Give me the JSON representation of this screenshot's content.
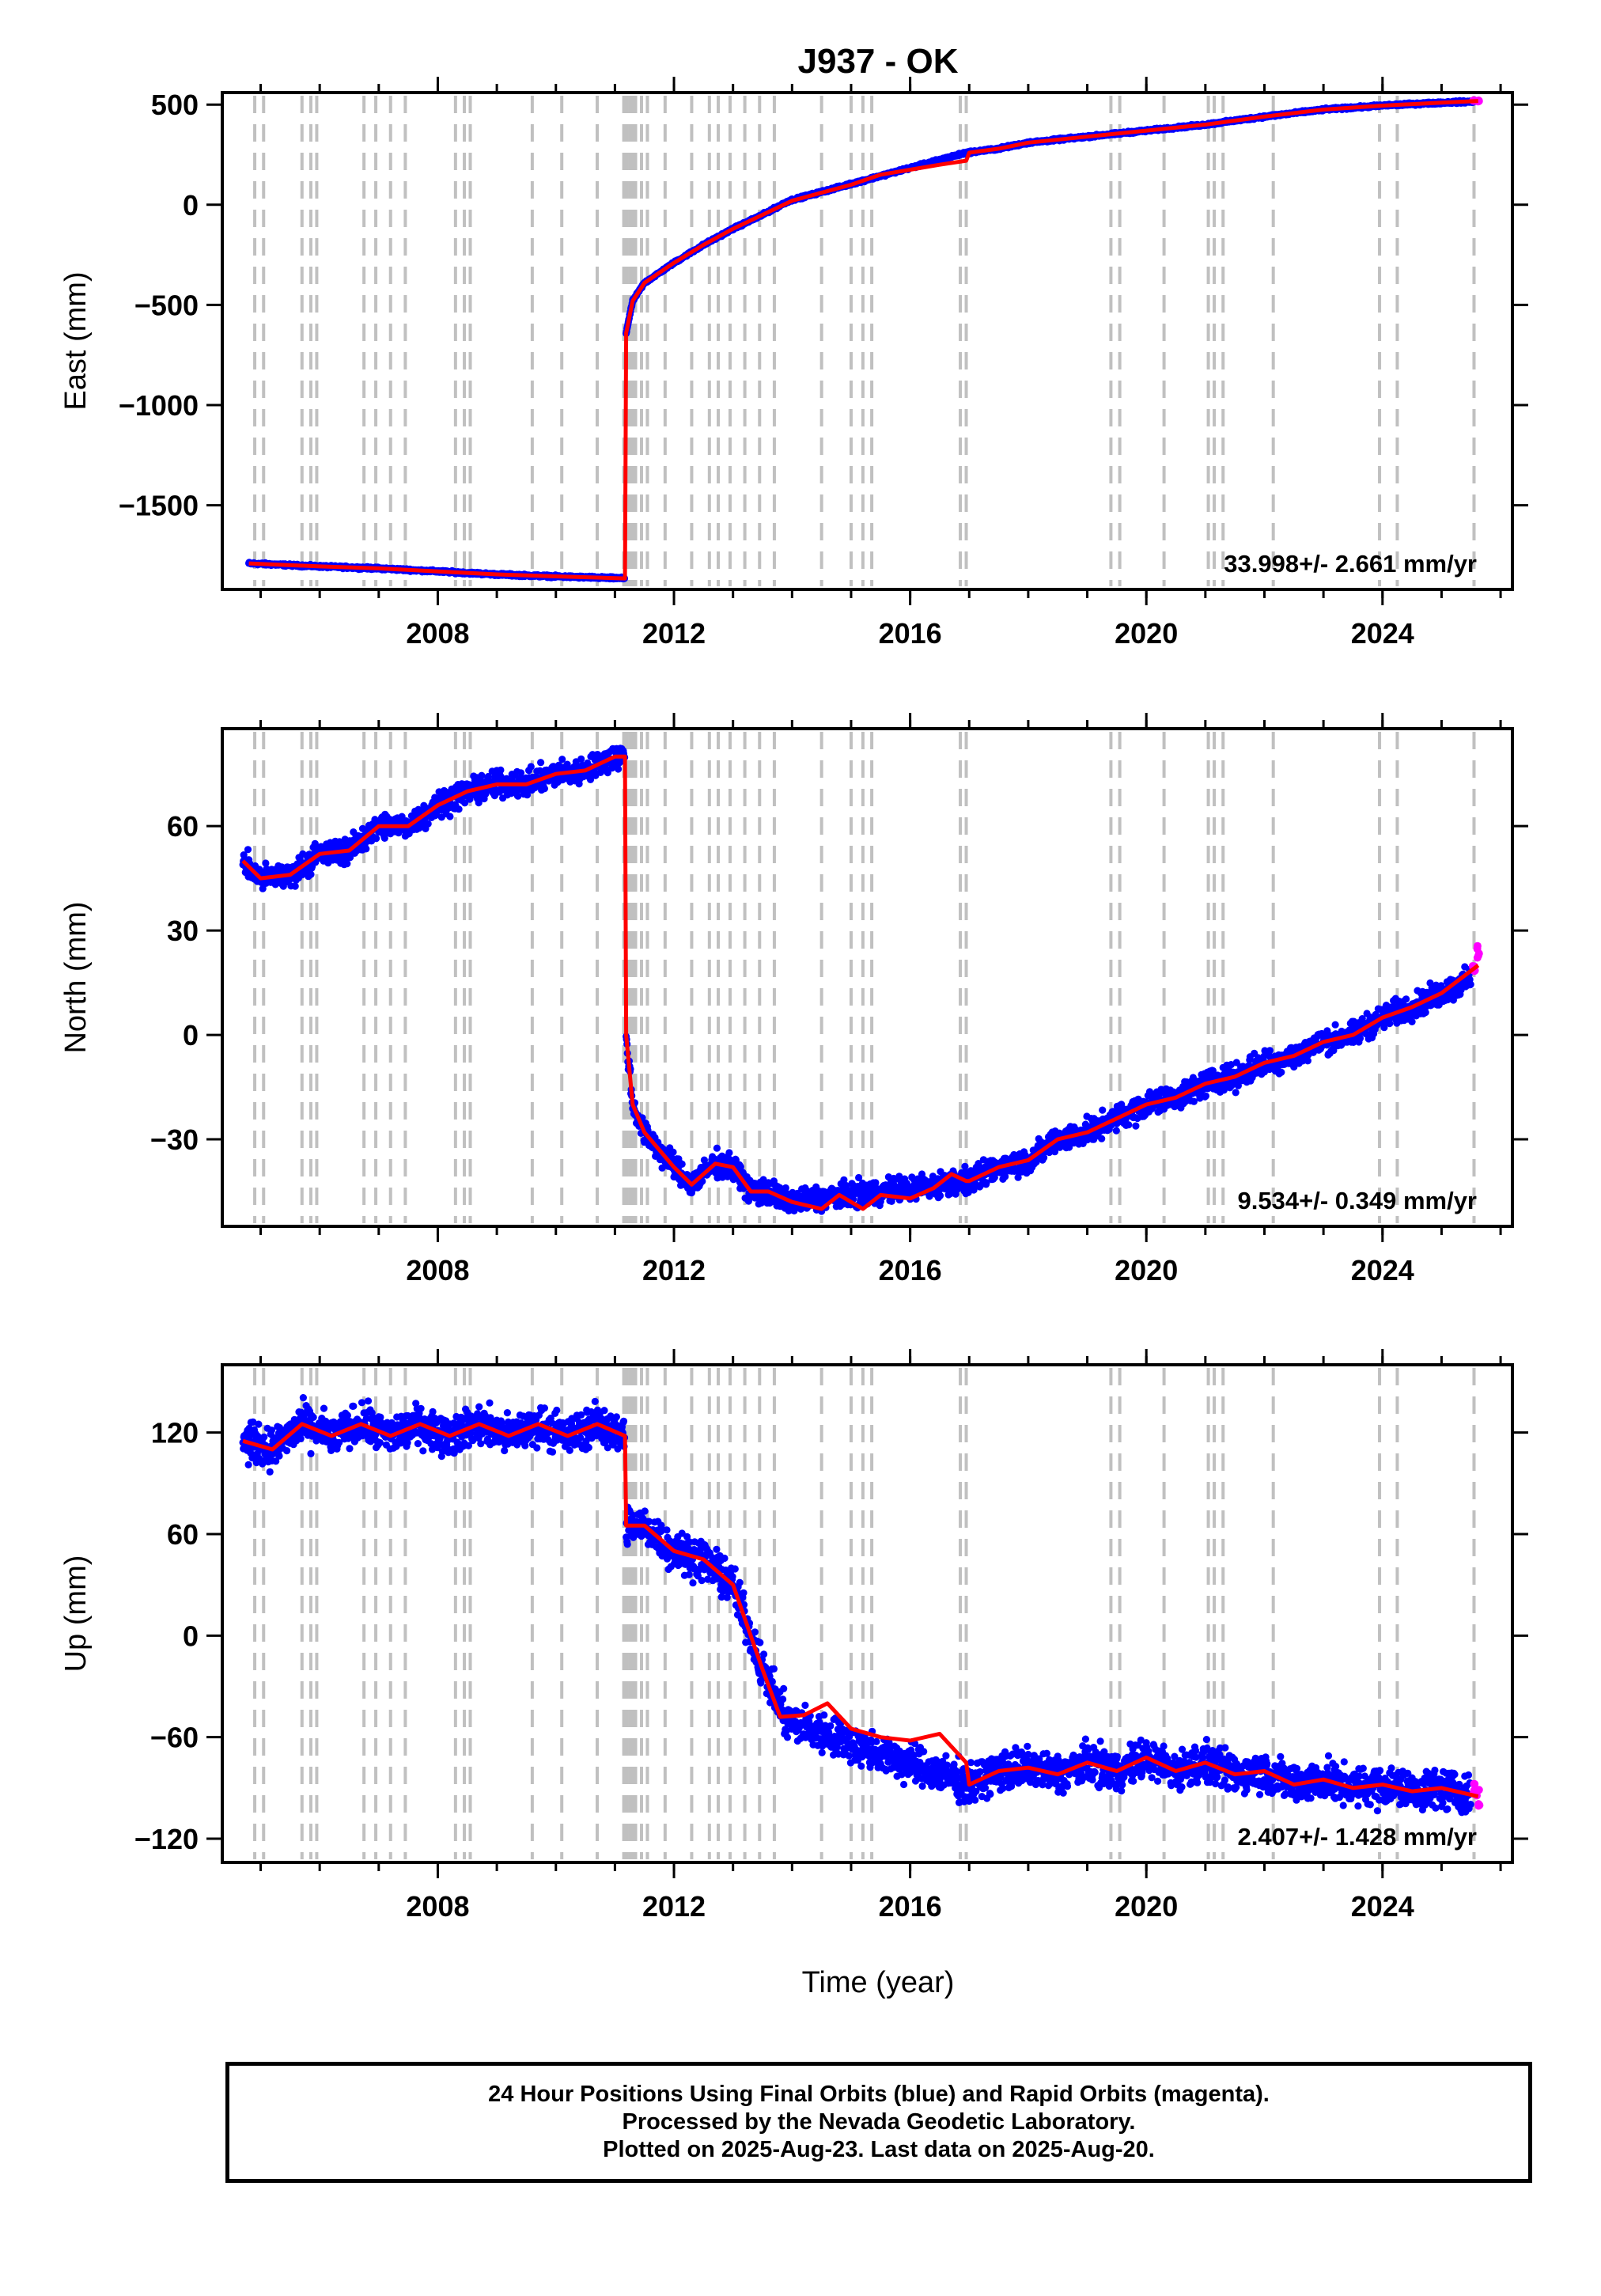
{
  "title": "J937 - OK",
  "xlabel": "Time (year)",
  "footer": {
    "line1": "24 Hour Positions Using Final Orbits (blue) and Rapid Orbits (magenta).",
    "line2": "Processed by the Nevada Geodetic Laboratory.",
    "line3": "Plotted on 2025-Aug-23. Last data on 2025-Aug-20."
  },
  "colors": {
    "final": "#0000ff",
    "rapid": "#ff00ff",
    "model": "#ff0000",
    "steps": "#c0c0c0"
  },
  "chart_data": [
    {
      "type": "scatter",
      "ylabel": "East (mm)",
      "xlim": [
        2004.35,
        2026.2
      ],
      "ylim": [
        -1920,
        560
      ],
      "xticks": [
        2008,
        2012,
        2016,
        2020,
        2024
      ],
      "yticks": [
        500,
        0,
        -500,
        -1000,
        -1500
      ],
      "rate": "33.998+/- 2.661 mm/yr",
      "final": [
        [
          2004.8,
          -1790
        ],
        [
          2006.0,
          -1805
        ],
        [
          2007.0,
          -1815
        ],
        [
          2008.0,
          -1830
        ],
        [
          2009.0,
          -1845
        ],
        [
          2010.0,
          -1855
        ],
        [
          2011.17,
          -1865
        ],
        [
          2011.19,
          -640
        ],
        [
          2011.3,
          -480
        ],
        [
          2011.5,
          -390
        ],
        [
          2012.0,
          -290
        ],
        [
          2012.5,
          -200
        ],
        [
          2013.0,
          -120
        ],
        [
          2013.5,
          -50
        ],
        [
          2013.95,
          20
        ],
        [
          2016.95,
          260
        ],
        [
          2017.5,
          280
        ],
        [
          2018.0,
          310
        ],
        [
          2019.0,
          340
        ],
        [
          2020.0,
          370
        ],
        [
          2021.0,
          400
        ],
        [
          2022.0,
          440
        ],
        [
          2023.0,
          475
        ],
        [
          2024.0,
          495
        ],
        [
          2025.0,
          510
        ],
        [
          2025.55,
          515
        ]
      ],
      "rapid": [
        [
          2025.55,
          520
        ],
        [
          2025.62,
          518
        ]
      ],
      "model": [
        [
          2004.8,
          -1790
        ],
        [
          2006.0,
          -1805
        ],
        [
          2007.0,
          -1815
        ],
        [
          2008.0,
          -1830
        ],
        [
          2009.0,
          -1845
        ],
        [
          2010.0,
          -1855
        ],
        [
          2011.17,
          -1865
        ],
        [
          2011.19,
          -640
        ],
        [
          2011.3,
          -480
        ],
        [
          2011.5,
          -390
        ],
        [
          2012.0,
          -290
        ],
        [
          2012.5,
          -200
        ],
        [
          2013.0,
          -120
        ],
        [
          2013.5,
          -50
        ],
        [
          2014.0,
          20
        ],
        [
          2014.5,
          60
        ],
        [
          2015.0,
          100
        ],
        [
          2015.5,
          150
        ],
        [
          2016.0,
          175
        ],
        [
          2016.5,
          200
        ],
        [
          2016.95,
          220
        ],
        [
          2017.0,
          260
        ],
        [
          2017.5,
          280
        ],
        [
          2018.0,
          310
        ],
        [
          2019.0,
          340
        ],
        [
          2020.0,
          370
        ],
        [
          2021.0,
          400
        ],
        [
          2022.0,
          440
        ],
        [
          2023.0,
          475
        ],
        [
          2024.0,
          495
        ],
        [
          2025.0,
          510
        ],
        [
          2025.62,
          518
        ]
      ],
      "noise": 4
    },
    {
      "type": "scatter",
      "ylabel": "North (mm)",
      "xlim": [
        2004.35,
        2026.2
      ],
      "ylim": [
        -55,
        88
      ],
      "xticks": [
        2008,
        2012,
        2016,
        2020,
        2024
      ],
      "yticks": [
        60,
        30,
        0,
        -30
      ],
      "rate": "9.534+/- 0.349 mm/yr",
      "final": [
        [
          2004.7,
          50
        ],
        [
          2005.0,
          45
        ],
        [
          2005.5,
          46
        ],
        [
          2006.0,
          52
        ],
        [
          2006.5,
          53
        ],
        [
          2007.0,
          60
        ],
        [
          2007.5,
          60
        ],
        [
          2008.0,
          66
        ],
        [
          2008.5,
          70
        ],
        [
          2009.0,
          72
        ],
        [
          2009.5,
          72
        ],
        [
          2010.0,
          75
        ],
        [
          2010.5,
          76
        ],
        [
          2011.0,
          80
        ],
        [
          2011.17,
          80
        ],
        [
          2011.19,
          0
        ],
        [
          2011.3,
          -20
        ],
        [
          2011.5,
          -28
        ],
        [
          2012.0,
          -38
        ],
        [
          2012.3,
          -43
        ],
        [
          2012.7,
          -37
        ],
        [
          2013.0,
          -38
        ],
        [
          2013.3,
          -45
        ],
        [
          2013.6,
          -45
        ],
        [
          2013.9,
          -48
        ],
        [
          2017.0,
          -42
        ],
        [
          2017.5,
          -38
        ],
        [
          2018.0,
          -36
        ],
        [
          2018.5,
          -30
        ],
        [
          2019.0,
          -28
        ],
        [
          2019.5,
          -24
        ],
        [
          2020.0,
          -20
        ],
        [
          2020.5,
          -18
        ],
        [
          2021.0,
          -14
        ],
        [
          2021.5,
          -12
        ],
        [
          2022.0,
          -8
        ],
        [
          2022.5,
          -6
        ],
        [
          2023.0,
          -2
        ],
        [
          2023.5,
          0
        ],
        [
          2024.0,
          5
        ],
        [
          2024.5,
          8
        ],
        [
          2025.0,
          12
        ],
        [
          2025.5,
          16
        ]
      ],
      "rapid": [
        [
          2025.55,
          20
        ],
        [
          2025.62,
          24
        ]
      ],
      "model": [
        [
          2004.7,
          50
        ],
        [
          2005.0,
          45
        ],
        [
          2005.5,
          46
        ],
        [
          2006.0,
          52
        ],
        [
          2006.5,
          53
        ],
        [
          2007.0,
          60
        ],
        [
          2007.5,
          60
        ],
        [
          2008.0,
          66
        ],
        [
          2008.5,
          70
        ],
        [
          2009.0,
          72
        ],
        [
          2009.5,
          72
        ],
        [
          2010.0,
          75
        ],
        [
          2010.5,
          76
        ],
        [
          2011.0,
          80
        ],
        [
          2011.17,
          80
        ],
        [
          2011.19,
          0
        ],
        [
          2011.3,
          -20
        ],
        [
          2011.5,
          -28
        ],
        [
          2012.0,
          -38
        ],
        [
          2012.3,
          -43
        ],
        [
          2012.7,
          -37
        ],
        [
          2013.0,
          -38
        ],
        [
          2013.3,
          -45
        ],
        [
          2013.6,
          -45
        ],
        [
          2014.0,
          -48
        ],
        [
          2014.5,
          -50
        ],
        [
          2014.8,
          -46
        ],
        [
          2015.2,
          -50
        ],
        [
          2015.5,
          -46
        ],
        [
          2016.0,
          -47
        ],
        [
          2016.4,
          -44
        ],
        [
          2016.7,
          -40
        ],
        [
          2016.95,
          -42
        ],
        [
          2017.0,
          -42
        ],
        [
          2017.5,
          -38
        ],
        [
          2018.0,
          -36
        ],
        [
          2018.5,
          -30
        ],
        [
          2019.0,
          -28
        ],
        [
          2019.5,
          -24
        ],
        [
          2020.0,
          -20
        ],
        [
          2020.5,
          -18
        ],
        [
          2021.0,
          -14
        ],
        [
          2021.5,
          -12
        ],
        [
          2022.0,
          -8
        ],
        [
          2022.5,
          -6
        ],
        [
          2023.0,
          -2
        ],
        [
          2023.5,
          0
        ],
        [
          2024.0,
          5
        ],
        [
          2024.5,
          8
        ],
        [
          2025.0,
          12
        ],
        [
          2025.62,
          20
        ]
      ],
      "noise": 2.5
    },
    {
      "type": "scatter",
      "ylabel": "Up (mm)",
      "xlim": [
        2004.35,
        2026.2
      ],
      "ylim": [
        -134,
        160
      ],
      "xticks": [
        2008,
        2012,
        2016,
        2020,
        2024
      ],
      "yticks": [
        120,
        60,
        0,
        -60,
        -120
      ],
      "rate": "2.407+/- 1.428 mm/yr",
      "final": [
        [
          2004.7,
          115
        ],
        [
          2005.2,
          110
        ],
        [
          2005.7,
          125
        ],
        [
          2006.2,
          118
        ],
        [
          2006.7,
          125
        ],
        [
          2007.2,
          118
        ],
        [
          2007.7,
          125
        ],
        [
          2008.2,
          118
        ],
        [
          2008.7,
          125
        ],
        [
          2009.2,
          118
        ],
        [
          2009.7,
          125
        ],
        [
          2010.2,
          118
        ],
        [
          2010.7,
          125
        ],
        [
          2011.17,
          118
        ],
        [
          2011.19,
          65
        ],
        [
          2011.5,
          65
        ],
        [
          2012.0,
          50
        ],
        [
          2012.5,
          45
        ],
        [
          2013.0,
          30
        ],
        [
          2013.2,
          10
        ],
        [
          2013.5,
          -20
        ],
        [
          2013.9,
          -50
        ],
        [
          2017.0,
          -88
        ],
        [
          2017.5,
          -80
        ],
        [
          2018.0,
          -78
        ],
        [
          2018.5,
          -82
        ],
        [
          2019.0,
          -75
        ],
        [
          2019.5,
          -80
        ],
        [
          2020.0,
          -72
        ],
        [
          2020.5,
          -80
        ],
        [
          2021.0,
          -75
        ],
        [
          2021.5,
          -82
        ],
        [
          2022.0,
          -80
        ],
        [
          2022.5,
          -88
        ],
        [
          2023.0,
          -85
        ],
        [
          2023.5,
          -90
        ],
        [
          2024.0,
          -88
        ],
        [
          2024.5,
          -92
        ],
        [
          2025.0,
          -90
        ],
        [
          2025.5,
          -95
        ]
      ],
      "rapid": [
        [
          2025.55,
          -90
        ],
        [
          2025.62,
          -95
        ]
      ],
      "model": [
        [
          2004.7,
          115
        ],
        [
          2005.2,
          110
        ],
        [
          2005.7,
          125
        ],
        [
          2006.2,
          118
        ],
        [
          2006.7,
          125
        ],
        [
          2007.2,
          118
        ],
        [
          2007.7,
          125
        ],
        [
          2008.2,
          118
        ],
        [
          2008.7,
          125
        ],
        [
          2009.2,
          118
        ],
        [
          2009.7,
          125
        ],
        [
          2010.2,
          118
        ],
        [
          2010.7,
          125
        ],
        [
          2011.17,
          118
        ],
        [
          2011.19,
          65
        ],
        [
          2011.5,
          65
        ],
        [
          2012.0,
          50
        ],
        [
          2012.5,
          45
        ],
        [
          2013.0,
          30
        ],
        [
          2013.2,
          10
        ],
        [
          2013.5,
          -20
        ],
        [
          2013.8,
          -48
        ],
        [
          2014.2,
          -47
        ],
        [
          2014.6,
          -40
        ],
        [
          2015.0,
          -55
        ],
        [
          2015.5,
          -60
        ],
        [
          2016.0,
          -62
        ],
        [
          2016.5,
          -58
        ],
        [
          2016.95,
          -75
        ],
        [
          2017.0,
          -88
        ],
        [
          2017.5,
          -80
        ],
        [
          2018.0,
          -78
        ],
        [
          2018.5,
          -82
        ],
        [
          2019.0,
          -75
        ],
        [
          2019.5,
          -80
        ],
        [
          2020.0,
          -72
        ],
        [
          2020.5,
          -80
        ],
        [
          2021.0,
          -75
        ],
        [
          2021.5,
          -82
        ],
        [
          2022.0,
          -80
        ],
        [
          2022.5,
          -88
        ],
        [
          2023.0,
          -85
        ],
        [
          2023.5,
          -90
        ],
        [
          2024.0,
          -88
        ],
        [
          2024.5,
          -92
        ],
        [
          2025.0,
          -90
        ],
        [
          2025.62,
          -95
        ]
      ],
      "noise": 8
    }
  ],
  "steps": [
    2004.9,
    2005.05,
    2005.7,
    2005.85,
    2005.95,
    2006.75,
    2006.95,
    2007.2,
    2007.45,
    2008.3,
    2008.45,
    2008.55,
    2009.6,
    2010.1,
    2010.7,
    2011.15,
    2011.2,
    2011.25,
    2011.3,
    2011.35,
    2011.45,
    2011.55,
    2011.85,
    2012.3,
    2012.6,
    2012.75,
    2012.95,
    2013.2,
    2013.45,
    2013.7,
    2014.5,
    2015.0,
    2015.2,
    2015.35,
    2016.85,
    2016.95,
    2019.4,
    2019.55,
    2020.3,
    2021.05,
    2021.15,
    2021.3,
    2022.15,
    2023.95,
    2024.25,
    2025.55
  ]
}
